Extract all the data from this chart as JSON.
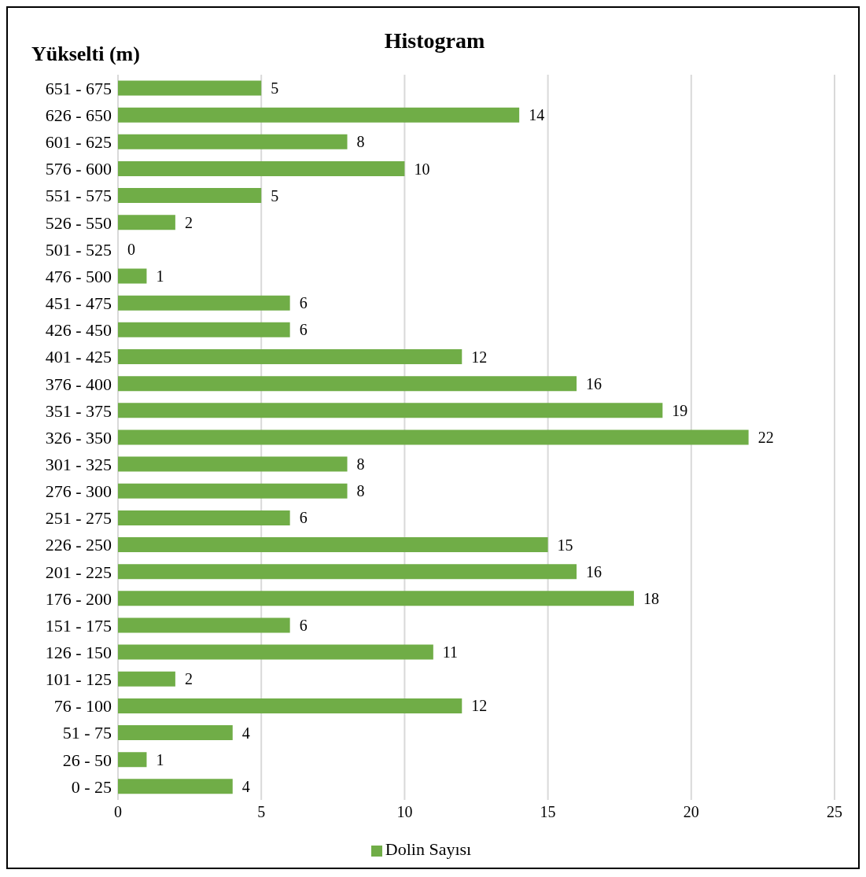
{
  "chart_data": {
    "type": "bar",
    "orientation": "horizontal",
    "title": "Histogram",
    "ylabel": "Yükselti (m)",
    "categories": [
      "651 - 675",
      "626 - 650",
      "601 - 625",
      "576 - 600",
      "551 - 575",
      "526 - 550",
      "501 - 525",
      "476 - 500",
      "451 - 475",
      "426 - 450",
      "401 - 425",
      "376 - 400",
      "351 - 375",
      "326 - 350",
      "301 - 325",
      "276 - 300",
      "251 - 275",
      "226 - 250",
      "201 - 225",
      "176 - 200",
      "151 - 175",
      "126 - 150",
      "101 - 125",
      "76 - 100",
      "51 - 75",
      "26 - 50",
      "0 - 25"
    ],
    "series": [
      {
        "name": "Dolin Sayısı",
        "color": "#70ad47",
        "values": [
          5,
          14,
          8,
          10,
          5,
          2,
          0,
          1,
          6,
          6,
          12,
          16,
          19,
          22,
          8,
          8,
          6,
          15,
          16,
          18,
          6,
          11,
          2,
          12,
          4,
          1,
          4
        ]
      }
    ],
    "xlim": [
      0,
      25
    ],
    "xticks": [
      0,
      5,
      10,
      15,
      20,
      25
    ],
    "grid": "x",
    "legend": "bottom",
    "data_labels": true
  }
}
